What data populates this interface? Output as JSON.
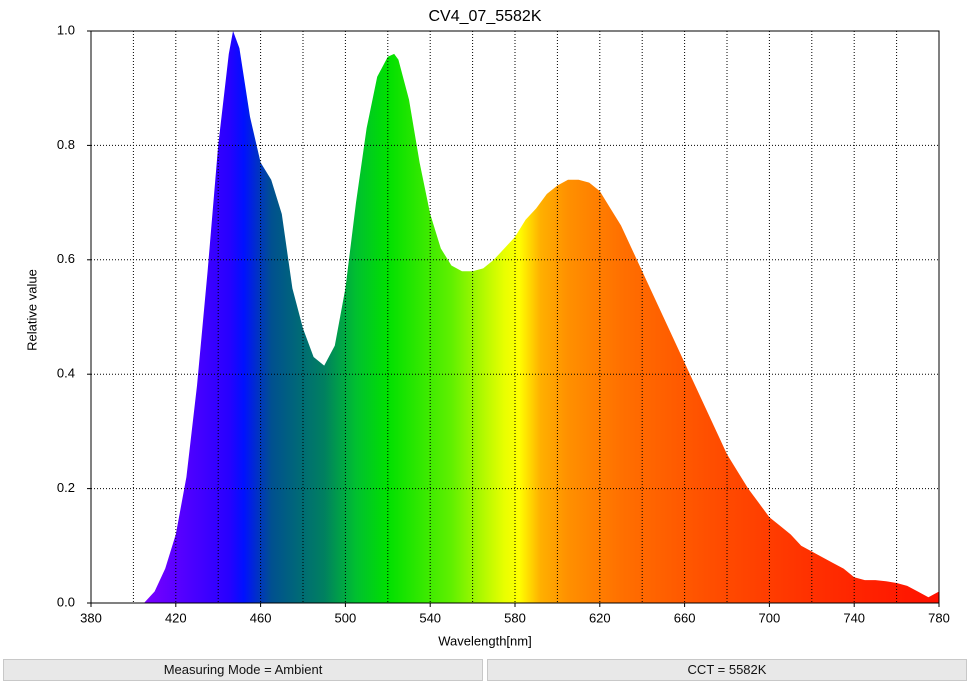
{
  "chart_data": {
    "type": "area",
    "title": "CV4_07_5582K",
    "xlabel": "Wavelength[nm]",
    "ylabel": "Relative value",
    "x": [
      380,
      385,
      390,
      395,
      400,
      405,
      410,
      415,
      420,
      425,
      430,
      435,
      440,
      445,
      447,
      450,
      455,
      460,
      465,
      470,
      475,
      480,
      485,
      490,
      495,
      500,
      505,
      510,
      515,
      520,
      523,
      525,
      530,
      535,
      540,
      545,
      550,
      555,
      560,
      565,
      570,
      575,
      580,
      585,
      590,
      595,
      600,
      605,
      610,
      615,
      620,
      625,
      630,
      635,
      640,
      645,
      650,
      655,
      660,
      665,
      670,
      675,
      680,
      685,
      690,
      695,
      700,
      705,
      710,
      715,
      720,
      725,
      730,
      735,
      740,
      745,
      750,
      755,
      760,
      765,
      770,
      775,
      780
    ],
    "values": [
      0,
      0,
      0,
      0,
      0,
      0,
      0.02,
      0.06,
      0.12,
      0.22,
      0.38,
      0.58,
      0.8,
      0.96,
      1.0,
      0.97,
      0.85,
      0.77,
      0.74,
      0.68,
      0.55,
      0.48,
      0.43,
      0.415,
      0.45,
      0.55,
      0.7,
      0.83,
      0.92,
      0.955,
      0.96,
      0.95,
      0.88,
      0.77,
      0.68,
      0.62,
      0.59,
      0.58,
      0.58,
      0.585,
      0.6,
      0.62,
      0.64,
      0.67,
      0.69,
      0.715,
      0.73,
      0.74,
      0.74,
      0.735,
      0.72,
      0.69,
      0.66,
      0.62,
      0.58,
      0.54,
      0.5,
      0.46,
      0.42,
      0.38,
      0.34,
      0.3,
      0.26,
      0.23,
      0.2,
      0.175,
      0.15,
      0.135,
      0.12,
      0.1,
      0.09,
      0.08,
      0.07,
      0.06,
      0.045,
      0.04,
      0.04,
      0.038,
      0.035,
      0.03,
      0.02,
      0.01,
      0.02
    ],
    "gradient_x": [
      405,
      420,
      445,
      452,
      465,
      490,
      505,
      520,
      550,
      575,
      582,
      592,
      605,
      630,
      670,
      720,
      780
    ],
    "gradient_colors": [
      "#7a00ff",
      "#5a00ff",
      "#2800ff",
      "#0010ff",
      "#005090",
      "#008060",
      "#00c030",
      "#00e000",
      "#60f000",
      "#e8ff00",
      "#ffff00",
      "#ffb000",
      "#ff9000",
      "#ff7000",
      "#ff5000",
      "#ff3000",
      "#ff1000"
    ],
    "xlim": [
      380,
      780
    ],
    "xticks": [
      380,
      420,
      460,
      500,
      540,
      580,
      620,
      660,
      700,
      740,
      780
    ],
    "x_minor_grid": [
      400,
      440,
      480,
      520,
      560,
      600,
      640,
      680,
      720,
      760
    ],
    "ylim": [
      0,
      1
    ],
    "yticks": [
      {
        "value": 0,
        "label": "0.0"
      },
      0.2,
      0.4,
      0.6,
      0.8,
      {
        "value": 1,
        "label": "1.0"
      }
    ],
    "grid": true
  },
  "status": [
    "Measuring Mode = Ambient",
    "CCT = 5582K"
  ]
}
